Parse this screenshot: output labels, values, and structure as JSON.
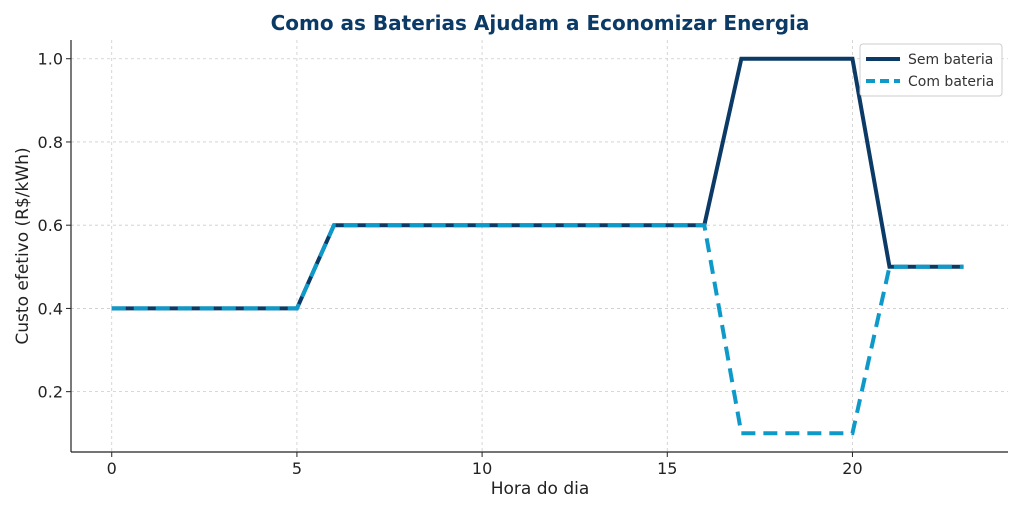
{
  "chart_data": {
    "type": "line",
    "title": "Como as Baterias Ajudam a Economizar Energia",
    "xlabel": "Hora do dia",
    "ylabel": "Custo efetivo (R$/kWh)",
    "x": [
      0,
      1,
      2,
      3,
      4,
      5,
      6,
      7,
      8,
      9,
      10,
      11,
      12,
      13,
      14,
      15,
      16,
      17,
      18,
      19,
      20,
      21,
      22,
      23
    ],
    "xlim": [
      -1.1,
      24.2
    ],
    "ylim": [
      0.055,
      1.045
    ],
    "x_ticks": [
      0,
      5,
      10,
      15,
      20
    ],
    "y_ticks": [
      0.2,
      0.4,
      0.6,
      0.8,
      1.0
    ],
    "x_tick_labels": [
      "0",
      "5",
      "10",
      "15",
      "20"
    ],
    "y_tick_labels": [
      "0.2",
      "0.4",
      "0.6",
      "0.8",
      "1.0"
    ],
    "grid": true,
    "legend_position": "top-right",
    "series": [
      {
        "name": "Sem bateria",
        "color": "#0b3a66",
        "style": "solid",
        "values": [
          0.4,
          0.4,
          0.4,
          0.4,
          0.4,
          0.4,
          0.6,
          0.6,
          0.6,
          0.6,
          0.6,
          0.6,
          0.6,
          0.6,
          0.6,
          0.6,
          0.6,
          1.0,
          1.0,
          1.0,
          1.0,
          0.5,
          0.5,
          0.5
        ]
      },
      {
        "name": "Com bateria",
        "color": "#0e9ac9",
        "style": "dashed",
        "values": [
          0.4,
          0.4,
          0.4,
          0.4,
          0.4,
          0.4,
          0.6,
          0.6,
          0.6,
          0.6,
          0.6,
          0.6,
          0.6,
          0.6,
          0.6,
          0.6,
          0.6,
          0.1,
          0.1,
          0.1,
          0.1,
          0.5,
          0.5,
          0.5
        ]
      }
    ],
    "colors": {
      "title": "#0b3a66",
      "axis": "#222222"
    }
  }
}
